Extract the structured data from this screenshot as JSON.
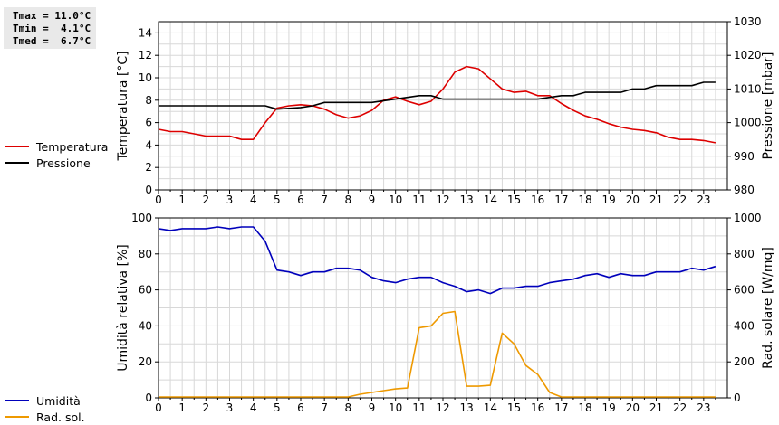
{
  "stats": {
    "tmax": "Tmax = 11.0°C",
    "tmin": "Tmin =  4.1°C",
    "tmed": "Tmed =  6.7°C"
  },
  "chart_data": [
    {
      "type": "line",
      "x_ticks": [
        0,
        1,
        2,
        3,
        4,
        5,
        6,
        7,
        8,
        9,
        10,
        11,
        12,
        13,
        14,
        15,
        16,
        17,
        18,
        19,
        20,
        21,
        22,
        23
      ],
      "xlim": [
        0,
        24
      ],
      "ylabel": "Temperatura [°C]",
      "ylim": [
        0,
        15
      ],
      "yticks": [
        0,
        2,
        4,
        6,
        8,
        10,
        12,
        14
      ],
      "ylabel_right": "Pressione [mbar]",
      "ylim_right": [
        980,
        1030
      ],
      "yticks_right": [
        980,
        990,
        1000,
        1010,
        1020,
        1030
      ],
      "grid": true,
      "legend_position": "left",
      "series": [
        {
          "name": "Temperatura",
          "axis": "left",
          "color": "#dd0000",
          "x": [
            0,
            0.5,
            1,
            1.5,
            2,
            2.5,
            3,
            3.5,
            4,
            4.5,
            5,
            5.5,
            6,
            6.5,
            7,
            7.5,
            8,
            8.5,
            9,
            9.5,
            10,
            10.5,
            11,
            11.5,
            12,
            12.5,
            13,
            13.5,
            14,
            14.5,
            15,
            15.5,
            16,
            16.5,
            17,
            17.5,
            18,
            18.5,
            19,
            19.5,
            20,
            20.5,
            21,
            21.5,
            22,
            22.5,
            23,
            23.5
          ],
          "values": [
            5.4,
            5.2,
            5.2,
            5.0,
            4.8,
            4.8,
            4.8,
            4.5,
            4.5,
            6.0,
            7.3,
            7.5,
            7.6,
            7.5,
            7.2,
            6.7,
            6.4,
            6.6,
            7.1,
            8.0,
            8.3,
            7.9,
            7.6,
            7.9,
            9.0,
            10.5,
            11.0,
            10.8,
            9.9,
            9.0,
            8.7,
            8.8,
            8.4,
            8.4,
            7.7,
            7.1,
            6.6,
            6.3,
            5.9,
            5.6,
            5.4,
            5.3,
            5.1,
            4.7,
            4.5,
            4.5,
            4.4,
            4.2
          ]
        },
        {
          "name": "Pressione",
          "axis": "right",
          "color": "#000000",
          "x": [
            0,
            4.5,
            5,
            6,
            6.5,
            7,
            8,
            9,
            9.5,
            10,
            10.5,
            11,
            11.5,
            12,
            13,
            14,
            15,
            16,
            16.5,
            17,
            17.5,
            18,
            18.5,
            19,
            19.5,
            20,
            20.5,
            21,
            21.5,
            22,
            22.5,
            23,
            23.5
          ],
          "values": [
            1005,
            1005,
            1004,
            1004.5,
            1005,
            1006,
            1006,
            1006,
            1006.5,
            1007,
            1007.5,
            1008,
            1008,
            1007,
            1007,
            1007,
            1007,
            1007,
            1007.5,
            1008,
            1008,
            1009,
            1009,
            1009,
            1009,
            1010,
            1010,
            1011,
            1011,
            1011,
            1011,
            1012,
            1012
          ]
        }
      ]
    },
    {
      "type": "line",
      "x_ticks": [
        0,
        1,
        2,
        3,
        4,
        5,
        6,
        7,
        8,
        9,
        10,
        11,
        12,
        13,
        14,
        15,
        16,
        17,
        18,
        19,
        20,
        21,
        22,
        23
      ],
      "xlim": [
        0,
        24
      ],
      "ylabel": "Umidità relativa [%]",
      "ylim": [
        0,
        100
      ],
      "yticks": [
        0,
        20,
        40,
        60,
        80,
        100
      ],
      "ylabel_right": "Rad. solare [W/mq]",
      "ylim_right": [
        0,
        1000
      ],
      "yticks_right": [
        0,
        200,
        400,
        600,
        800,
        1000
      ],
      "grid": true,
      "legend_position": "left",
      "series": [
        {
          "name": "Umidità",
          "axis": "left",
          "color": "#0000bb",
          "x": [
            0,
            0.5,
            1,
            1.5,
            2,
            2.5,
            3,
            3.5,
            4,
            4.5,
            5,
            5.5,
            6,
            6.5,
            7,
            7.5,
            8,
            8.5,
            9,
            9.5,
            10,
            10.5,
            11,
            11.5,
            12,
            12.5,
            13,
            13.5,
            14,
            14.5,
            15,
            15.5,
            16,
            16.5,
            17,
            17.5,
            18,
            18.5,
            19,
            19.5,
            20,
            20.5,
            21,
            21.5,
            22,
            22.5,
            23,
            23.5
          ],
          "values": [
            94,
            93,
            94,
            94,
            94,
            95,
            94,
            95,
            95,
            87,
            71,
            70,
            68,
            70,
            70,
            72,
            72,
            71,
            67,
            65,
            64,
            66,
            67,
            67,
            64,
            62,
            59,
            60,
            58,
            61,
            61,
            62,
            62,
            64,
            65,
            66,
            68,
            69,
            67,
            69,
            68,
            68,
            70,
            70,
            70,
            72,
            71,
            73
          ]
        },
        {
          "name": "Rad. sol.",
          "axis": "right",
          "color": "#ee9900",
          "x": [
            0,
            4,
            5,
            6,
            7,
            8,
            8.5,
            9,
            9.5,
            10,
            10.5,
            11,
            11.5,
            12,
            12.5,
            13,
            13.5,
            14,
            14.5,
            15,
            15.5,
            16,
            16.5,
            17,
            17.5,
            18,
            19,
            20,
            21,
            22,
            23,
            23.5
          ],
          "values": [
            5,
            5,
            5,
            5,
            5,
            5,
            20,
            30,
            40,
            50,
            55,
            390,
            400,
            470,
            480,
            65,
            65,
            70,
            360,
            300,
            180,
            130,
            30,
            5,
            5,
            5,
            5,
            5,
            5,
            5,
            5,
            5
          ]
        }
      ]
    }
  ]
}
